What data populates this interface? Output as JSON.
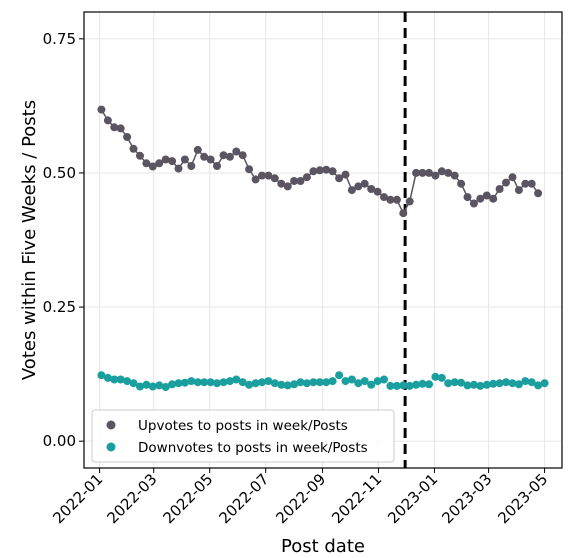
{
  "chart_data": {
    "type": "line",
    "xlabel": "Post date",
    "ylabel": "Votes within Five Weeks / Posts",
    "x_range": [
      "2021-12-15",
      "2023-05-20"
    ],
    "ylim": [
      -0.05,
      0.8
    ],
    "yticks": [
      0.0,
      0.25,
      0.5,
      0.75
    ],
    "ytick_labels": [
      "0.00",
      "0.25",
      "0.50",
      "0.75"
    ],
    "xticks": [
      "2022-01-01",
      "2022-03-01",
      "2022-05-01",
      "2022-07-01",
      "2022-09-01",
      "2022-11-01",
      "2023-01-01",
      "2023-03-01",
      "2023-05-01"
    ],
    "xtick_labels": [
      "2022-01",
      "2022-03",
      "2022-05",
      "2022-07",
      "2022-09",
      "2022-11",
      "2023-01",
      "2023-03",
      "2023-05"
    ],
    "grid": true,
    "legend_position": "lower-left",
    "vline": {
      "x": "2022-11-30",
      "style": "dashed",
      "color": "#000000"
    },
    "series": [
      {
        "name": "Upvotes to posts in week/Posts",
        "color": "#5a5560",
        "line": true,
        "x": [
          "2022-01-03",
          "2022-01-10",
          "2022-01-17",
          "2022-01-24",
          "2022-01-31",
          "2022-02-07",
          "2022-02-14",
          "2022-02-21",
          "2022-02-28",
          "2022-03-07",
          "2022-03-14",
          "2022-03-21",
          "2022-03-28",
          "2022-04-04",
          "2022-04-11",
          "2022-04-18",
          "2022-04-25",
          "2022-05-02",
          "2022-05-09",
          "2022-05-16",
          "2022-05-23",
          "2022-05-30",
          "2022-06-06",
          "2022-06-13",
          "2022-06-20",
          "2022-06-27",
          "2022-07-04",
          "2022-07-11",
          "2022-07-18",
          "2022-07-25",
          "2022-08-01",
          "2022-08-08",
          "2022-08-15",
          "2022-08-22",
          "2022-08-29",
          "2022-09-05",
          "2022-09-12",
          "2022-09-19",
          "2022-09-26",
          "2022-10-03",
          "2022-10-10",
          "2022-10-17",
          "2022-10-24",
          "2022-10-31",
          "2022-11-07",
          "2022-11-14",
          "2022-11-21",
          "2022-11-28",
          "2022-12-05",
          "2022-12-12",
          "2022-12-19",
          "2022-12-26",
          "2023-01-02",
          "2023-01-09",
          "2023-01-16",
          "2023-01-23",
          "2023-01-30",
          "2023-02-06",
          "2023-02-13",
          "2023-02-20",
          "2023-02-27",
          "2023-03-06",
          "2023-03-13",
          "2023-03-20",
          "2023-03-27",
          "2023-04-03",
          "2023-04-10",
          "2023-04-17",
          "2023-04-24"
        ],
        "y": [
          0.618,
          0.598,
          0.585,
          0.583,
          0.567,
          0.545,
          0.532,
          0.518,
          0.512,
          0.518,
          0.525,
          0.522,
          0.508,
          0.525,
          0.513,
          0.543,
          0.53,
          0.525,
          0.513,
          0.533,
          0.53,
          0.54,
          0.533,
          0.507,
          0.488,
          0.495,
          0.495,
          0.49,
          0.48,
          0.475,
          0.485,
          0.485,
          0.492,
          0.503,
          0.505,
          0.506,
          0.503,
          0.49,
          0.497,
          0.468,
          0.475,
          0.48,
          0.47,
          0.465,
          0.455,
          0.45,
          0.45,
          0.425,
          0.447,
          0.5,
          0.5,
          0.5,
          0.495,
          0.503,
          0.5,
          0.495,
          0.48,
          0.455,
          0.443,
          0.452,
          0.458,
          0.452,
          0.47,
          0.482,
          0.492,
          0.468,
          0.48,
          0.48,
          0.462
        ]
      },
      {
        "name": "Downvotes to posts in week/Posts",
        "color": "#1a9e9e",
        "line": false,
        "x": [
          "2022-01-03",
          "2022-01-10",
          "2022-01-17",
          "2022-01-24",
          "2022-01-31",
          "2022-02-07",
          "2022-02-14",
          "2022-02-21",
          "2022-02-28",
          "2022-03-07",
          "2022-03-14",
          "2022-03-21",
          "2022-03-28",
          "2022-04-04",
          "2022-04-11",
          "2022-04-18",
          "2022-04-25",
          "2022-05-02",
          "2022-05-09",
          "2022-05-16",
          "2022-05-23",
          "2022-05-30",
          "2022-06-06",
          "2022-06-13",
          "2022-06-20",
          "2022-06-27",
          "2022-07-04",
          "2022-07-11",
          "2022-07-18",
          "2022-07-25",
          "2022-08-01",
          "2022-08-08",
          "2022-08-15",
          "2022-08-22",
          "2022-08-29",
          "2022-09-05",
          "2022-09-12",
          "2022-09-19",
          "2022-09-26",
          "2022-10-03",
          "2022-10-10",
          "2022-10-17",
          "2022-10-24",
          "2022-10-31",
          "2022-11-07",
          "2022-11-14",
          "2022-11-21",
          "2022-11-28",
          "2022-12-05",
          "2022-12-12",
          "2022-12-19",
          "2022-12-26",
          "2023-01-02",
          "2023-01-09",
          "2023-01-16",
          "2023-01-23",
          "2023-01-30",
          "2023-02-06",
          "2023-02-13",
          "2023-02-20",
          "2023-02-27",
          "2023-03-06",
          "2023-03-13",
          "2023-03-20",
          "2023-03-27",
          "2023-04-03",
          "2023-04-10",
          "2023-04-17",
          "2023-04-24",
          "2023-05-01"
        ],
        "y": [
          0.123,
          0.118,
          0.115,
          0.115,
          0.112,
          0.108,
          0.102,
          0.105,
          0.102,
          0.104,
          0.101,
          0.106,
          0.108,
          0.109,
          0.112,
          0.11,
          0.11,
          0.11,
          0.108,
          0.11,
          0.112,
          0.115,
          0.11,
          0.105,
          0.108,
          0.11,
          0.112,
          0.108,
          0.105,
          0.104,
          0.106,
          0.11,
          0.108,
          0.11,
          0.11,
          0.11,
          0.112,
          0.123,
          0.112,
          0.115,
          0.108,
          0.112,
          0.105,
          0.112,
          0.115,
          0.103,
          0.103,
          0.104,
          0.103,
          0.105,
          0.107,
          0.106,
          0.12,
          0.118,
          0.108,
          0.11,
          0.109,
          0.104,
          0.105,
          0.103,
          0.105,
          0.107,
          0.108,
          0.11,
          0.108,
          0.106,
          0.112,
          0.11,
          0.104,
          0.108
        ]
      }
    ]
  }
}
